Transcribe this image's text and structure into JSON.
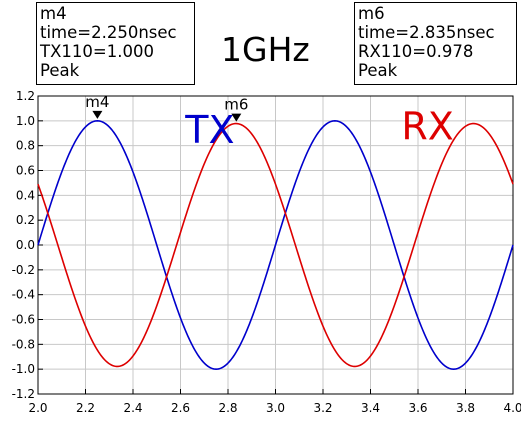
{
  "chart_data": {
    "type": "line",
    "title": "1GHz",
    "xlabel": "",
    "ylabel": "",
    "xlim": [
      2.0,
      4.0
    ],
    "ylim": [
      -1.2,
      1.2
    ],
    "x_ticks": [
      "2.0",
      "2.2",
      "2.4",
      "2.6",
      "2.8",
      "3.0",
      "3.2",
      "3.4",
      "3.6",
      "3.8",
      "4.0"
    ],
    "y_ticks": [
      "1.2",
      "1.0",
      "0.8",
      "0.6",
      "0.4",
      "0.2",
      "0.0",
      "-0.2",
      "-0.4",
      "-0.6",
      "-0.8",
      "-1.0",
      "-1.2"
    ],
    "grid": true,
    "series": [
      {
        "name": "TX",
        "color": "#0000cc",
        "x": [
          2.0,
          2.125,
          2.25,
          2.375,
          2.5,
          2.625,
          2.75,
          2.875,
          3.0,
          3.125,
          3.25,
          3.375,
          3.5,
          3.625,
          3.75,
          3.875,
          4.0
        ],
        "y": [
          0.0,
          0.707,
          1.0,
          0.707,
          0.0,
          -0.707,
          -1.0,
          -0.707,
          0.0,
          0.707,
          1.0,
          0.707,
          0.0,
          -0.707,
          -1.0,
          -0.707,
          0.0
        ]
      },
      {
        "name": "RX",
        "color": "#dd0000",
        "x": [
          2.0,
          2.1,
          2.2,
          2.3,
          2.335,
          2.4,
          2.5,
          2.6,
          2.7,
          2.8,
          2.835,
          2.9,
          3.0,
          3.1,
          3.2,
          3.3,
          3.335,
          3.4,
          3.5,
          3.6,
          3.7,
          3.8,
          3.835,
          3.9,
          4.0
        ],
        "y": [
          0.49,
          -0.2,
          -0.78,
          -0.97,
          -0.978,
          -0.91,
          -0.49,
          0.2,
          0.78,
          0.97,
          0.978,
          0.91,
          0.49,
          -0.2,
          -0.78,
          -0.97,
          -0.978,
          -0.91,
          -0.49,
          0.2,
          0.78,
          0.97,
          0.978,
          0.91,
          0.49
        ]
      }
    ],
    "series_labels": [
      {
        "text": "TX",
        "color": "#0000cc",
        "x": 2.62,
        "y": 0.82
      },
      {
        "text": "RX",
        "color": "#dd0000",
        "x": 3.53,
        "y": 0.85
      }
    ],
    "markers": [
      {
        "id": "m4",
        "x": 2.25,
        "y": 1.0
      },
      {
        "id": "m6",
        "x": 2.835,
        "y": 0.978
      }
    ]
  },
  "marker_boxes": {
    "m4": {
      "name": "m4",
      "time": "time=2.250nsec",
      "value": "TX110=1.000",
      "kind": "Peak"
    },
    "m6": {
      "name": "m6",
      "time": "time=2.835nsec",
      "value": "RX110=0.978",
      "kind": "Peak"
    }
  }
}
